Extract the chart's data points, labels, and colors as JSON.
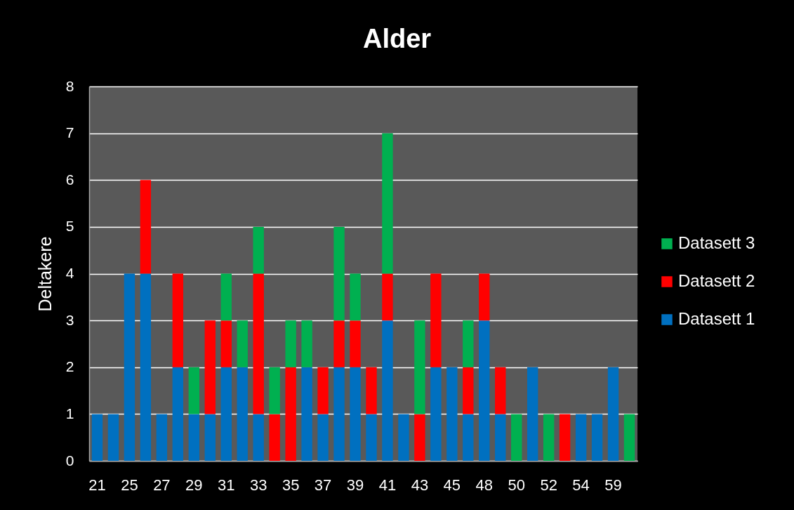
{
  "chart_data": {
    "type": "bar",
    "title": "Alder",
    "ylabel": "Deltakere",
    "categories": [
      "21",
      null,
      "25",
      null,
      "27",
      null,
      "29",
      null,
      "31",
      null,
      "33",
      null,
      "35",
      null,
      "37",
      null,
      "39",
      null,
      "41",
      null,
      "43",
      null,
      "45",
      null,
      "48",
      null,
      "50",
      null,
      "52",
      null,
      "54",
      null,
      "59",
      null
    ],
    "series": [
      {
        "name": "Datasett 1",
        "color": "#0070c0",
        "values": [
          1,
          1,
          4,
          4,
          1,
          2,
          1,
          1,
          2,
          2,
          1,
          null,
          null,
          2,
          1,
          2,
          2,
          1,
          3,
          1,
          null,
          2,
          2,
          1,
          3,
          1,
          null,
          2,
          null,
          null,
          1,
          1,
          2,
          null
        ]
      },
      {
        "name": "Datasett 2",
        "color": "#ff0000",
        "values": [
          null,
          null,
          null,
          2,
          null,
          2,
          null,
          2,
          1,
          null,
          3,
          1,
          2,
          null,
          1,
          1,
          1,
          1,
          1,
          null,
          1,
          2,
          null,
          1,
          1,
          1,
          null,
          null,
          null,
          1,
          null,
          null,
          null,
          null
        ]
      },
      {
        "name": "Datasett 3",
        "color": "#00b050",
        "values": [
          null,
          null,
          null,
          null,
          null,
          null,
          1,
          null,
          1,
          1,
          1,
          1,
          1,
          1,
          null,
          2,
          1,
          null,
          3,
          null,
          2,
          null,
          null,
          1,
          null,
          null,
          1,
          null,
          1,
          null,
          null,
          null,
          null,
          1
        ]
      }
    ],
    "stacked": true,
    "ylim": [
      0,
      8
    ],
    "yticks": [
      0,
      1,
      2,
      3,
      4,
      5,
      6,
      7,
      8
    ],
    "grid": "y",
    "legend": "right"
  }
}
